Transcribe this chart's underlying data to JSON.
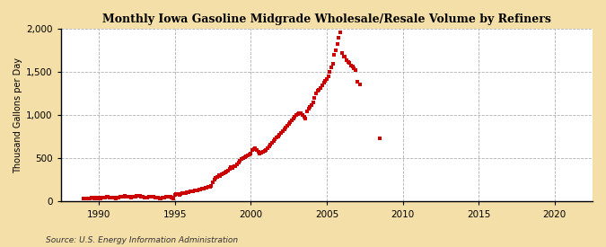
{
  "title": "Monthly Iowa Gasoline Midgrade Wholesale/Resale Volume by Refiners",
  "ylabel": "Thousand Gallons per Day",
  "source": "Source: U.S. Energy Information Administration",
  "fig_background_color": "#f5dfa8",
  "plot_background_color": "#ffffff",
  "dot_color": "#cc0000",
  "xlim": [
    1987.5,
    2022.5
  ],
  "ylim": [
    0,
    2000
  ],
  "yticks": [
    0,
    500,
    1000,
    1500,
    2000
  ],
  "xticks": [
    1990,
    1995,
    2000,
    2005,
    2010,
    2015,
    2020
  ],
  "data": [
    [
      1989.0,
      38
    ],
    [
      1989.1,
      32
    ],
    [
      1989.2,
      40
    ],
    [
      1989.3,
      35
    ],
    [
      1989.4,
      38
    ],
    [
      1989.5,
      42
    ],
    [
      1989.6,
      45
    ],
    [
      1989.7,
      40
    ],
    [
      1989.8,
      44
    ],
    [
      1989.9,
      36
    ],
    [
      1990.0,
      42
    ],
    [
      1990.1,
      38
    ],
    [
      1990.2,
      50
    ],
    [
      1990.3,
      45
    ],
    [
      1990.4,
      48
    ],
    [
      1990.5,
      52
    ],
    [
      1990.6,
      55
    ],
    [
      1990.7,
      48
    ],
    [
      1990.8,
      50
    ],
    [
      1990.9,
      45
    ],
    [
      1991.0,
      45
    ],
    [
      1991.1,
      40
    ],
    [
      1991.2,
      45
    ],
    [
      1991.3,
      50
    ],
    [
      1991.4,
      55
    ],
    [
      1991.5,
      52
    ],
    [
      1991.6,
      60
    ],
    [
      1991.7,
      65
    ],
    [
      1991.8,
      62
    ],
    [
      1991.9,
      55
    ],
    [
      1992.0,
      52
    ],
    [
      1992.1,
      50
    ],
    [
      1992.2,
      55
    ],
    [
      1992.3,
      58
    ],
    [
      1992.4,
      62
    ],
    [
      1992.5,
      68
    ],
    [
      1992.6,
      70
    ],
    [
      1992.7,
      65
    ],
    [
      1992.8,
      58
    ],
    [
      1992.9,
      52
    ],
    [
      1993.0,
      48
    ],
    [
      1993.1,
      45
    ],
    [
      1993.2,
      50
    ],
    [
      1993.3,
      55
    ],
    [
      1993.4,
      58
    ],
    [
      1993.5,
      60
    ],
    [
      1993.6,
      55
    ],
    [
      1993.7,
      50
    ],
    [
      1993.8,
      45
    ],
    [
      1993.9,
      42
    ],
    [
      1994.0,
      40
    ],
    [
      1994.1,
      38
    ],
    [
      1994.2,
      42
    ],
    [
      1994.3,
      48
    ],
    [
      1994.4,
      52
    ],
    [
      1994.5,
      55
    ],
    [
      1994.6,
      58
    ],
    [
      1994.7,
      52
    ],
    [
      1994.8,
      45
    ],
    [
      1994.9,
      40
    ],
    [
      1995.0,
      80
    ],
    [
      1995.1,
      85
    ],
    [
      1995.2,
      88
    ],
    [
      1995.3,
      82
    ],
    [
      1995.4,
      90
    ],
    [
      1995.5,
      95
    ],
    [
      1995.6,
      100
    ],
    [
      1995.7,
      95
    ],
    [
      1995.8,
      105
    ],
    [
      1995.9,
      110
    ],
    [
      1996.0,
      115
    ],
    [
      1996.1,
      118
    ],
    [
      1996.2,
      122
    ],
    [
      1996.3,
      128
    ],
    [
      1996.4,
      125
    ],
    [
      1996.5,
      132
    ],
    [
      1996.6,
      138
    ],
    [
      1996.7,
      142
    ],
    [
      1996.8,
      148
    ],
    [
      1996.9,
      152
    ],
    [
      1997.0,
      158
    ],
    [
      1997.1,
      162
    ],
    [
      1997.2,
      168
    ],
    [
      1997.3,
      172
    ],
    [
      1997.4,
      178
    ],
    [
      1997.5,
      220
    ],
    [
      1997.6,
      255
    ],
    [
      1997.7,
      275
    ],
    [
      1997.8,
      290
    ],
    [
      1997.9,
      305
    ],
    [
      1998.0,
      298
    ],
    [
      1998.1,
      315
    ],
    [
      1998.2,
      328
    ],
    [
      1998.3,
      338
    ],
    [
      1998.4,
      348
    ],
    [
      1998.5,
      355
    ],
    [
      1998.6,
      375
    ],
    [
      1998.7,
      395
    ],
    [
      1998.8,
      385
    ],
    [
      1998.9,
      405
    ],
    [
      1999.0,
      415
    ],
    [
      1999.1,
      435
    ],
    [
      1999.2,
      455
    ],
    [
      1999.3,
      475
    ],
    [
      1999.4,
      495
    ],
    [
      1999.5,
      505
    ],
    [
      1999.6,
      515
    ],
    [
      1999.7,
      525
    ],
    [
      1999.8,
      538
    ],
    [
      1999.9,
      548
    ],
    [
      2000.0,
      558
    ],
    [
      2000.1,
      598
    ],
    [
      2000.2,
      608
    ],
    [
      2000.3,
      620
    ],
    [
      2000.4,
      598
    ],
    [
      2000.5,
      578
    ],
    [
      2000.6,
      558
    ],
    [
      2000.7,
      568
    ],
    [
      2000.8,
      578
    ],
    [
      2000.9,
      588
    ],
    [
      2001.0,
      598
    ],
    [
      2001.1,
      618
    ],
    [
      2001.2,
      638
    ],
    [
      2001.3,
      658
    ],
    [
      2001.4,
      678
    ],
    [
      2001.5,
      698
    ],
    [
      2001.6,
      718
    ],
    [
      2001.7,
      738
    ],
    [
      2001.8,
      758
    ],
    [
      2001.9,
      778
    ],
    [
      2002.0,
      798
    ],
    [
      2002.1,
      818
    ],
    [
      2002.2,
      838
    ],
    [
      2002.3,
      858
    ],
    [
      2002.4,
      878
    ],
    [
      2002.5,
      898
    ],
    [
      2002.6,
      918
    ],
    [
      2002.7,
      938
    ],
    [
      2002.8,
      958
    ],
    [
      2002.9,
      978
    ],
    [
      2003.0,
      998
    ],
    [
      2003.1,
      1008
    ],
    [
      2003.2,
      1018
    ],
    [
      2003.3,
      1018
    ],
    [
      2003.4,
      998
    ],
    [
      2003.5,
      978
    ],
    [
      2003.6,
      958
    ],
    [
      2003.7,
      1048
    ],
    [
      2003.8,
      1078
    ],
    [
      2003.9,
      1098
    ],
    [
      2004.0,
      1118
    ],
    [
      2004.1,
      1148
    ],
    [
      2004.2,
      1198
    ],
    [
      2004.3,
      1248
    ],
    [
      2004.4,
      1278
    ],
    [
      2004.5,
      1298
    ],
    [
      2004.6,
      1318
    ],
    [
      2004.7,
      1348
    ],
    [
      2004.8,
      1378
    ],
    [
      2004.9,
      1398
    ],
    [
      2005.0,
      1418
    ],
    [
      2005.1,
      1448
    ],
    [
      2005.2,
      1498
    ],
    [
      2005.3,
      1548
    ],
    [
      2005.4,
      1598
    ],
    [
      2005.5,
      1698
    ],
    [
      2005.6,
      1748
    ],
    [
      2005.7,
      1820
    ],
    [
      2005.8,
      1900
    ],
    [
      2005.9,
      1960
    ],
    [
      2006.0,
      1720
    ],
    [
      2006.1,
      1680
    ],
    [
      2006.2,
      1680
    ],
    [
      2006.3,
      1640
    ],
    [
      2006.4,
      1620
    ],
    [
      2006.5,
      1600
    ],
    [
      2006.6,
      1578
    ],
    [
      2006.7,
      1558
    ],
    [
      2006.8,
      1538
    ],
    [
      2006.9,
      1518
    ],
    [
      2007.0,
      1388
    ],
    [
      2007.2,
      1358
    ],
    [
      2008.5,
      730
    ]
  ]
}
